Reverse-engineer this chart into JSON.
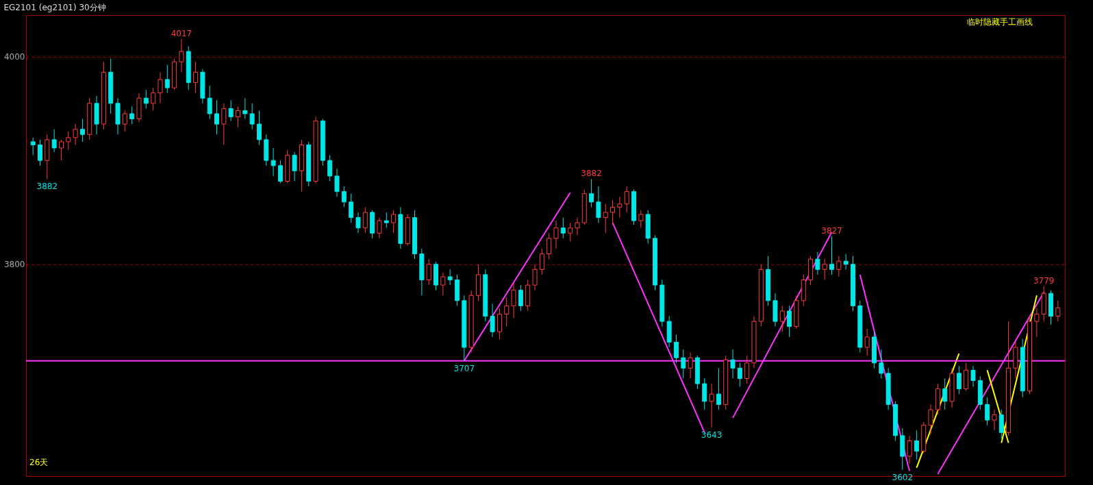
{
  "chart_data": {
    "type": "candlestick",
    "title": "EG2101 (eg2101) 30分钟",
    "categories": [
      null,
      null,
      null,
      null,
      null,
      null,
      null,
      null,
      null,
      null,
      null,
      null,
      null,
      null,
      null,
      null,
      null,
      null,
      null,
      null,
      null,
      null,
      null,
      null,
      null,
      null,
      null,
      null,
      null,
      null,
      null,
      null,
      null,
      null,
      null,
      null,
      null,
      null,
      null,
      null,
      null,
      null,
      null,
      null,
      null,
      null,
      null,
      null,
      null,
      null,
      null,
      null,
      null,
      null,
      null,
      null,
      null,
      null,
      null,
      null,
      null,
      null,
      null,
      null,
      null,
      null,
      null,
      null,
      null,
      null,
      null,
      null,
      null,
      null,
      null,
      null,
      null,
      null,
      null,
      null,
      null,
      null,
      null,
      null,
      null,
      null,
      null,
      null,
      null,
      null,
      null,
      null,
      null,
      null,
      null,
      null,
      null,
      null,
      null,
      null,
      null,
      null,
      null,
      null,
      null,
      null,
      null,
      null,
      null,
      null,
      null,
      null,
      null,
      null,
      null,
      null,
      null,
      null,
      null,
      null,
      null,
      null,
      null,
      null,
      null,
      null,
      null,
      null,
      null,
      null,
      null,
      null,
      null,
      null,
      null,
      null,
      null,
      null,
      null,
      null,
      null,
      null,
      null,
      null,
      null,
      null
    ],
    "ohlc": [
      [
        3918,
        3922,
        3905,
        3915
      ],
      [
        3915,
        3920,
        3895,
        3900
      ],
      [
        3900,
        3925,
        3882,
        3920
      ],
      [
        3920,
        3930,
        3908,
        3912
      ],
      [
        3912,
        3920,
        3900,
        3918
      ],
      [
        3918,
        3928,
        3910,
        3922
      ],
      [
        3922,
        3935,
        3915,
        3930
      ],
      [
        3930,
        3940,
        3918,
        3925
      ],
      [
        3925,
        3960,
        3920,
        3955
      ],
      [
        3955,
        3962,
        3925,
        3935
      ],
      [
        3935,
        3995,
        3930,
        3985
      ],
      [
        3985,
        3998,
        3945,
        3955
      ],
      [
        3955,
        3960,
        3925,
        3935
      ],
      [
        3935,
        3948,
        3928,
        3945
      ],
      [
        3945,
        3952,
        3935,
        3940
      ],
      [
        3940,
        3965,
        3937,
        3960
      ],
      [
        3960,
        3968,
        3950,
        3955
      ],
      [
        3955,
        3970,
        3948,
        3965
      ],
      [
        3965,
        3985,
        3955,
        3978
      ],
      [
        3978,
        3992,
        3965,
        3970
      ],
      [
        3970,
        3998,
        3968,
        3995
      ],
      [
        3995,
        4017,
        3985,
        4005
      ],
      [
        4005,
        4010,
        3968,
        3975
      ],
      [
        3975,
        3995,
        3965,
        3985
      ],
      [
        3985,
        3988,
        3955,
        3960
      ],
      [
        3960,
        3972,
        3940,
        3945
      ],
      [
        3945,
        3958,
        3925,
        3935
      ],
      [
        3935,
        3955,
        3915,
        3950
      ],
      [
        3950,
        3958,
        3938,
        3942
      ],
      [
        3942,
        3952,
        3932,
        3948
      ],
      [
        3948,
        3960,
        3940,
        3945
      ],
      [
        3945,
        3955,
        3930,
        3935
      ],
      [
        3935,
        3948,
        3915,
        3920
      ],
      [
        3920,
        3925,
        3895,
        3900
      ],
      [
        3900,
        3912,
        3885,
        3895
      ],
      [
        3895,
        3900,
        3878,
        3880
      ],
      [
        3880,
        3910,
        3878,
        3905
      ],
      [
        3905,
        3908,
        3880,
        3890
      ],
      [
        3890,
        3920,
        3870,
        3915
      ],
      [
        3915,
        3918,
        3875,
        3880
      ],
      [
        3880,
        3942,
        3878,
        3938
      ],
      [
        3938,
        3940,
        3895,
        3900
      ],
      [
        3900,
        3905,
        3880,
        3885
      ],
      [
        3885,
        3892,
        3865,
        3870
      ],
      [
        3870,
        3875,
        3855,
        3860
      ],
      [
        3860,
        3868,
        3840,
        3845
      ],
      [
        3845,
        3850,
        3830,
        3835
      ],
      [
        3835,
        3855,
        3830,
        3850
      ],
      [
        3850,
        3852,
        3825,
        3830
      ],
      [
        3830,
        3845,
        3825,
        3842
      ],
      [
        3842,
        3850,
        3835,
        3840
      ],
      [
        3840,
        3852,
        3830,
        3848
      ],
      [
        3848,
        3855,
        3815,
        3820
      ],
      [
        3820,
        3848,
        3818,
        3845
      ],
      [
        3845,
        3852,
        3805,
        3810
      ],
      [
        3810,
        3815,
        3770,
        3785
      ],
      [
        3785,
        3805,
        3780,
        3800
      ],
      [
        3800,
        3802,
        3775,
        3780
      ],
      [
        3780,
        3792,
        3770,
        3788
      ],
      [
        3788,
        3795,
        3780,
        3785
      ],
      [
        3785,
        3790,
        3760,
        3765
      ],
      [
        3765,
        3770,
        3707,
        3720
      ],
      [
        3720,
        3775,
        3715,
        3770
      ],
      [
        3770,
        3800,
        3765,
        3790
      ],
      [
        3790,
        3795,
        3745,
        3750
      ],
      [
        3750,
        3762,
        3730,
        3735
      ],
      [
        3735,
        3758,
        3728,
        3752
      ],
      [
        3752,
        3768,
        3740,
        3760
      ],
      [
        3760,
        3782,
        3748,
        3775
      ],
      [
        3775,
        3780,
        3755,
        3760
      ],
      [
        3760,
        3785,
        3755,
        3780
      ],
      [
        3780,
        3800,
        3775,
        3795
      ],
      [
        3795,
        3815,
        3790,
        3810
      ],
      [
        3810,
        3830,
        3805,
        3825
      ],
      [
        3825,
        3842,
        3815,
        3835
      ],
      [
        3835,
        3845,
        3825,
        3830
      ],
      [
        3830,
        3840,
        3822,
        3835
      ],
      [
        3835,
        3845,
        3828,
        3840
      ],
      [
        3840,
        3872,
        3838,
        3868
      ],
      [
        3868,
        3882,
        3855,
        3860
      ],
      [
        3860,
        3875,
        3840,
        3845
      ],
      [
        3845,
        3858,
        3830,
        3850
      ],
      [
        3850,
        3862,
        3838,
        3855
      ],
      [
        3855,
        3865,
        3845,
        3858
      ],
      [
        3858,
        3875,
        3850,
        3870
      ],
      [
        3870,
        3872,
        3838,
        3842
      ],
      [
        3842,
        3852,
        3835,
        3848
      ],
      [
        3848,
        3852,
        3820,
        3825
      ],
      [
        3825,
        3828,
        3775,
        3780
      ],
      [
        3780,
        3785,
        3740,
        3745
      ],
      [
        3745,
        3750,
        3720,
        3725
      ],
      [
        3725,
        3732,
        3705,
        3710
      ],
      [
        3710,
        3718,
        3690,
        3700
      ],
      [
        3700,
        3715,
        3690,
        3710
      ],
      [
        3710,
        3712,
        3680,
        3685
      ],
      [
        3685,
        3690,
        3660,
        3668
      ],
      [
        3668,
        3685,
        3643,
        3675
      ],
      [
        3675,
        3700,
        3660,
        3665
      ],
      [
        3665,
        3712,
        3660,
        3708
      ],
      [
        3708,
        3718,
        3690,
        3700
      ],
      [
        3700,
        3705,
        3682,
        3690
      ],
      [
        3690,
        3712,
        3685,
        3705
      ],
      [
        3705,
        3750,
        3700,
        3745
      ],
      [
        3745,
        3800,
        3740,
        3795
      ],
      [
        3795,
        3808,
        3760,
        3765
      ],
      [
        3765,
        3772,
        3740,
        3745
      ],
      [
        3745,
        3760,
        3735,
        3755
      ],
      [
        3755,
        3760,
        3730,
        3740
      ],
      [
        3740,
        3770,
        3738,
        3765
      ],
      [
        3765,
        3790,
        3760,
        3785
      ],
      [
        3785,
        3808,
        3780,
        3805
      ],
      [
        3805,
        3812,
        3790,
        3795
      ],
      [
        3795,
        3805,
        3785,
        3800
      ],
      [
        3800,
        3827,
        3790,
        3795
      ],
      [
        3795,
        3808,
        3788,
        3803
      ],
      [
        3803,
        3810,
        3795,
        3800
      ],
      [
        3800,
        3808,
        3755,
        3760
      ],
      [
        3760,
        3765,
        3715,
        3720
      ],
      [
        3720,
        3738,
        3712,
        3730
      ],
      [
        3730,
        3735,
        3700,
        3705
      ],
      [
        3705,
        3718,
        3690,
        3695
      ],
      [
        3695,
        3700,
        3660,
        3665
      ],
      [
        3665,
        3668,
        3630,
        3635
      ],
      [
        3635,
        3642,
        3602,
        3615
      ],
      [
        3615,
        3635,
        3608,
        3630
      ],
      [
        3630,
        3640,
        3612,
        3620
      ],
      [
        3620,
        3648,
        3618,
        3645
      ],
      [
        3645,
        3665,
        3636,
        3660
      ],
      [
        3660,
        3685,
        3655,
        3680
      ],
      [
        3680,
        3690,
        3660,
        3668
      ],
      [
        3668,
        3700,
        3662,
        3695
      ],
      [
        3695,
        3702,
        3675,
        3680
      ],
      [
        3680,
        3705,
        3678,
        3698
      ],
      [
        3698,
        3702,
        3682,
        3688
      ],
      [
        3688,
        3692,
        3660,
        3665
      ],
      [
        3665,
        3672,
        3645,
        3650
      ],
      [
        3650,
        3660,
        3640,
        3655
      ],
      [
        3655,
        3660,
        3632,
        3638
      ],
      [
        3638,
        3745,
        3635,
        3700
      ],
      [
        3700,
        3725,
        3690,
        3720
      ],
      [
        3720,
        3728,
        3672,
        3678
      ],
      [
        3678,
        3750,
        3675,
        3745
      ],
      [
        3745,
        3758,
        3730,
        3752
      ],
      [
        3752,
        3779,
        3745,
        3772
      ],
      [
        3772,
        3775,
        3742,
        3750
      ],
      [
        3750,
        3765,
        3745,
        3758
      ]
    ],
    "series": [
      {
        "type": "line",
        "color": "#ff33ff",
        "values": [
          null,
          null,
          null,
          null,
          null,
          null,
          null,
          null,
          null,
          null,
          null,
          null,
          null,
          null,
          null,
          null,
          null,
          null,
          null,
          null,
          null,
          null,
          null,
          null,
          null,
          null,
          null,
          null,
          null,
          null,
          null,
          null,
          null,
          null,
          null,
          null,
          null,
          null,
          null,
          null,
          null,
          null,
          null,
          null,
          null,
          null,
          null,
          null,
          null,
          null,
          null,
          null,
          null,
          null,
          null,
          null,
          null,
          null,
          null,
          null,
          null,
          3707,
          null,
          null,
          null,
          null,
          null,
          null,
          null,
          null,
          null,
          null,
          null,
          null,
          null,
          null,
          3869,
          null,
          null,
          null,
          null,
          null,
          null,
          null,
          null,
          null,
          null,
          null,
          null,
          null,
          null,
          null,
          null,
          null,
          null,
          null,
          null,
          null,
          null,
          null,
          null,
          null,
          null,
          null,
          null,
          null,
          null,
          null,
          null,
          null,
          null,
          null,
          null,
          null,
          null,
          null,
          null,
          null,
          null,
          null,
          null,
          null,
          null,
          null,
          null,
          null,
          null,
          null,
          null,
          null,
          null,
          null,
          null,
          null,
          null,
          null,
          null,
          null,
          null,
          null,
          null,
          null,
          null,
          null,
          null,
          null
        ]
      },
      {
        "type": "line",
        "color": "#ff33ff",
        "values": [
          null,
          null,
          null,
          null,
          null,
          null,
          null,
          null,
          null,
          null,
          null,
          null,
          null,
          null,
          null,
          null,
          null,
          null,
          null,
          null,
          null,
          null,
          null,
          null,
          null,
          null,
          null,
          null,
          null,
          null,
          null,
          null,
          null,
          null,
          null,
          null,
          null,
          null,
          null,
          null,
          null,
          null,
          null,
          null,
          null,
          null,
          null,
          null,
          null,
          null,
          null,
          null,
          null,
          null,
          null,
          null,
          null,
          null,
          null,
          null,
          null,
          null,
          null,
          null,
          null,
          null,
          null,
          null,
          null,
          null,
          null,
          null,
          null,
          null,
          null,
          null,
          null,
          null,
          null,
          null,
          null,
          null,
          3840,
          null,
          null,
          null,
          null,
          null,
          null,
          null,
          null,
          null,
          null,
          null,
          null,
          3638,
          null,
          null,
          null,
          null,
          null,
          null,
          null,
          null,
          null,
          null,
          null,
          null,
          null,
          null,
          null,
          null,
          null,
          null,
          null,
          null,
          null,
          null,
          null,
          null,
          null,
          null,
          null,
          null,
          null,
          null,
          null,
          null,
          null,
          null,
          null,
          null,
          null,
          null,
          null,
          null,
          null,
          null,
          null,
          null,
          null,
          null,
          null,
          null,
          null,
          null
        ]
      },
      {
        "type": "line",
        "color": "#ff33ff",
        "values": [
          null,
          null,
          null,
          null,
          null,
          null,
          null,
          null,
          null,
          null,
          null,
          null,
          null,
          null,
          null,
          null,
          null,
          null,
          null,
          null,
          null,
          null,
          null,
          null,
          null,
          null,
          null,
          null,
          null,
          null,
          null,
          null,
          null,
          null,
          null,
          null,
          null,
          null,
          null,
          null,
          null,
          null,
          null,
          null,
          null,
          null,
          null,
          null,
          null,
          null,
          null,
          null,
          null,
          null,
          null,
          null,
          null,
          null,
          null,
          null,
          null,
          null,
          null,
          null,
          null,
          null,
          null,
          null,
          null,
          null,
          null,
          null,
          null,
          null,
          null,
          null,
          null,
          null,
          null,
          null,
          null,
          null,
          null,
          null,
          null,
          null,
          null,
          null,
          null,
          null,
          null,
          null,
          null,
          null,
          null,
          null,
          null,
          null,
          null,
          3652,
          null,
          null,
          null,
          null,
          null,
          null,
          null,
          null,
          null,
          null,
          null,
          null,
          null,
          3831,
          null,
          null,
          null,
          null,
          null,
          null,
          null,
          null,
          null,
          null,
          null,
          null,
          null,
          null,
          null,
          null,
          null,
          null,
          null,
          null,
          null,
          null,
          null,
          null,
          null,
          null,
          null,
          null,
          null,
          null,
          null,
          null
        ]
      },
      {
        "type": "line",
        "color": "#ff33ff",
        "values": [
          null,
          null,
          null,
          null,
          null,
          null,
          null,
          null,
          null,
          null,
          null,
          null,
          null,
          null,
          null,
          null,
          null,
          null,
          null,
          null,
          null,
          null,
          null,
          null,
          null,
          null,
          null,
          null,
          null,
          null,
          null,
          null,
          null,
          null,
          null,
          null,
          null,
          null,
          null,
          null,
          null,
          null,
          null,
          null,
          null,
          null,
          null,
          null,
          null,
          null,
          null,
          null,
          null,
          null,
          null,
          null,
          null,
          null,
          null,
          null,
          null,
          null,
          null,
          null,
          null,
          null,
          null,
          null,
          null,
          null,
          null,
          null,
          null,
          null,
          null,
          null,
          null,
          null,
          null,
          null,
          null,
          null,
          null,
          null,
          null,
          null,
          null,
          null,
          null,
          null,
          null,
          null,
          null,
          null,
          null,
          null,
          null,
          null,
          null,
          null,
          null,
          null,
          null,
          null,
          null,
          null,
          null,
          null,
          null,
          null,
          null,
          null,
          null,
          null,
          null,
          null,
          null,
          3790,
          null,
          null,
          null,
          null,
          null,
          null,
          3601,
          null,
          null,
          null,
          null,
          null,
          null,
          null,
          null,
          null,
          null,
          null,
          null,
          null,
          null,
          null,
          null,
          null,
          null,
          null,
          null,
          null
        ]
      },
      {
        "type": "line",
        "color": "#ff33ff",
        "values": [
          null,
          null,
          null,
          null,
          null,
          null,
          null,
          null,
          null,
          null,
          null,
          null,
          null,
          null,
          null,
          null,
          null,
          null,
          null,
          null,
          null,
          null,
          null,
          null,
          null,
          null,
          null,
          null,
          null,
          null,
          null,
          null,
          null,
          null,
          null,
          null,
          null,
          null,
          null,
          null,
          null,
          null,
          null,
          null,
          null,
          null,
          null,
          null,
          null,
          null,
          null,
          null,
          null,
          null,
          null,
          null,
          null,
          null,
          null,
          null,
          null,
          null,
          null,
          null,
          null,
          null,
          null,
          null,
          null,
          null,
          null,
          null,
          null,
          null,
          null,
          null,
          null,
          null,
          null,
          null,
          null,
          null,
          null,
          null,
          null,
          null,
          null,
          null,
          null,
          null,
          null,
          null,
          null,
          null,
          null,
          null,
          null,
          null,
          null,
          null,
          null,
          null,
          null,
          null,
          null,
          null,
          null,
          null,
          null,
          null,
          null,
          null,
          null,
          null,
          null,
          null,
          null,
          null,
          null,
          null,
          null,
          null,
          null,
          null,
          null,
          null,
          null,
          null,
          3598,
          null,
          null,
          null,
          null,
          null,
          null,
          null,
          null,
          null,
          null,
          null,
          null,
          null,
          null,
          3773,
          null,
          null
        ]
      },
      {
        "type": "line",
        "color": "#ffff00",
        "values": [
          null,
          null,
          null,
          null,
          null,
          null,
          null,
          null,
          null,
          null,
          null,
          null,
          null,
          null,
          null,
          null,
          null,
          null,
          null,
          null,
          null,
          null,
          null,
          null,
          null,
          null,
          null,
          null,
          null,
          null,
          null,
          null,
          null,
          null,
          null,
          null,
          null,
          null,
          null,
          null,
          null,
          null,
          null,
          null,
          null,
          null,
          null,
          null,
          null,
          null,
          null,
          null,
          null,
          null,
          null,
          null,
          null,
          null,
          null,
          null,
          null,
          null,
          null,
          null,
          null,
          null,
          null,
          null,
          null,
          null,
          null,
          null,
          null,
          null,
          null,
          null,
          null,
          null,
          null,
          null,
          null,
          null,
          null,
          null,
          null,
          null,
          null,
          null,
          null,
          null,
          null,
          null,
          null,
          null,
          null,
          null,
          null,
          null,
          null,
          null,
          null,
          null,
          null,
          null,
          null,
          null,
          null,
          null,
          null,
          null,
          null,
          null,
          null,
          null,
          null,
          null,
          null,
          null,
          null,
          null,
          null,
          null,
          null,
          null,
          null,
          3604,
          null,
          null,
          null,
          null,
          null,
          3714,
          null,
          null,
          null,
          null,
          null,
          null,
          null,
          null,
          null,
          null,
          null,
          null,
          null,
          null
        ]
      },
      {
        "type": "line",
        "color": "#ffff00",
        "values": [
          null,
          null,
          null,
          null,
          null,
          null,
          null,
          null,
          null,
          null,
          null,
          null,
          null,
          null,
          null,
          null,
          null,
          null,
          null,
          null,
          null,
          null,
          null,
          null,
          null,
          null,
          null,
          null,
          null,
          null,
          null,
          null,
          null,
          null,
          null,
          null,
          null,
          null,
          null,
          null,
          null,
          null,
          null,
          null,
          null,
          null,
          null,
          null,
          null,
          null,
          null,
          null,
          null,
          null,
          null,
          null,
          null,
          null,
          null,
          null,
          null,
          null,
          null,
          null,
          null,
          null,
          null,
          null,
          null,
          null,
          null,
          null,
          null,
          null,
          null,
          null,
          null,
          null,
          null,
          null,
          null,
          null,
          null,
          null,
          null,
          null,
          null,
          null,
          null,
          null,
          null,
          null,
          null,
          null,
          null,
          null,
          null,
          null,
          null,
          null,
          null,
          null,
          null,
          null,
          null,
          null,
          null,
          null,
          null,
          null,
          null,
          null,
          null,
          null,
          null,
          null,
          null,
          null,
          null,
          null,
          null,
          null,
          null,
          null,
          null,
          null,
          null,
          null,
          null,
          null,
          null,
          null,
          null,
          null,
          null,
          3698,
          null,
          null,
          3628,
          null,
          null,
          null,
          null,
          null,
          null,
          null
        ]
      },
      {
        "type": "line",
        "color": "#ffff00",
        "values": [
          null,
          null,
          null,
          null,
          null,
          null,
          null,
          null,
          null,
          null,
          null,
          null,
          null,
          null,
          null,
          null,
          null,
          null,
          null,
          null,
          null,
          null,
          null,
          null,
          null,
          null,
          null,
          null,
          null,
          null,
          null,
          null,
          null,
          null,
          null,
          null,
          null,
          null,
          null,
          null,
          null,
          null,
          null,
          null,
          null,
          null,
          null,
          null,
          null,
          null,
          null,
          null,
          null,
          null,
          null,
          null,
          null,
          null,
          null,
          null,
          null,
          null,
          null,
          null,
          null,
          null,
          null,
          null,
          null,
          null,
          null,
          null,
          null,
          null,
          null,
          null,
          null,
          null,
          null,
          null,
          null,
          null,
          null,
          null,
          null,
          null,
          null,
          null,
          null,
          null,
          null,
          null,
          null,
          null,
          null,
          null,
          null,
          null,
          null,
          null,
          null,
          null,
          null,
          null,
          null,
          null,
          null,
          null,
          null,
          null,
          null,
          null,
          null,
          null,
          null,
          null,
          null,
          null,
          null,
          null,
          null,
          null,
          null,
          null,
          null,
          null,
          null,
          null,
          null,
          null,
          null,
          null,
          null,
          null,
          null,
          null,
          null,
          3628,
          null,
          null,
          null,
          null,
          3770,
          null,
          null,
          null
        ]
      }
    ],
    "ref_lines": [
      {
        "axis": "y",
        "value": 3707,
        "color": "#ff33ff"
      }
    ],
    "annotations": [
      {
        "text": "3882",
        "y": 3882
      },
      {
        "text": "4017",
        "y": 4017
      },
      {
        "text": "3707",
        "y": 3707
      },
      {
        "text": "3882",
        "y": 3882
      },
      {
        "text": "3643",
        "y": 3643
      },
      {
        "text": "3827",
        "y": 3827
      },
      {
        "text": "3602",
        "y": 3602
      },
      {
        "text": "3779",
        "y": 3779
      },
      "临时隐藏手工画线",
      "26天"
    ],
    "ylim": [
      3596,
      4040
    ],
    "yticks": [
      3800,
      4000
    ],
    "tick_labels": "y",
    "grid": "y",
    "line_style": "solid"
  }
}
